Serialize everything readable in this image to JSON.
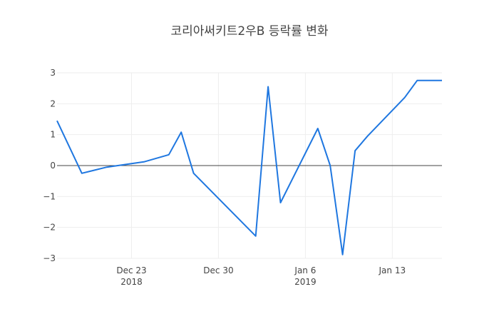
{
  "chart_data": {
    "type": "line",
    "title": "코리아써키트2우B 등락률 변화",
    "xlabel": "",
    "ylabel": "",
    "x_range": [
      "2018-12-17",
      "2019-01-17"
    ],
    "ylim": [
      -3,
      3
    ],
    "y_ticks": [
      3,
      2,
      1,
      0,
      -1,
      -2,
      -3
    ],
    "y_tick_labels": [
      "3",
      "2",
      "1",
      "0",
      "−1",
      "−2",
      "−3"
    ],
    "x_ticks": [
      {
        "date": "2018-12-23",
        "label": "Dec 23",
        "sublabel": "2018"
      },
      {
        "date": "2018-12-30",
        "label": "Dec 30",
        "sublabel": ""
      },
      {
        "date": "2019-01-06",
        "label": "Jan 6",
        "sublabel": "2019"
      },
      {
        "date": "2019-01-13",
        "label": "Jan 13",
        "sublabel": ""
      }
    ],
    "grid": true,
    "zero_line": true,
    "line_color": "#1f77e0",
    "series": [
      {
        "x": [
          "2018-12-17",
          "2018-12-19",
          "2018-12-20",
          "2018-12-21",
          "2018-12-24",
          "2018-12-26",
          "2018-12-27",
          "2018-12-28",
          "2019-01-02",
          "2019-01-03",
          "2019-01-04",
          "2019-01-07",
          "2019-01-08",
          "2019-01-09",
          "2019-01-10",
          "2019-01-11",
          "2019-01-14",
          "2019-01-15",
          "2019-01-16",
          "2019-01-17"
        ],
        "y": [
          1.45,
          -0.25,
          -0.15,
          -0.05,
          0.12,
          0.35,
          1.08,
          -0.25,
          -2.28,
          2.55,
          -1.2,
          1.2,
          0.0,
          -2.88,
          0.48,
          0.95,
          2.2,
          2.75,
          2.75,
          2.75
        ]
      }
    ]
  }
}
